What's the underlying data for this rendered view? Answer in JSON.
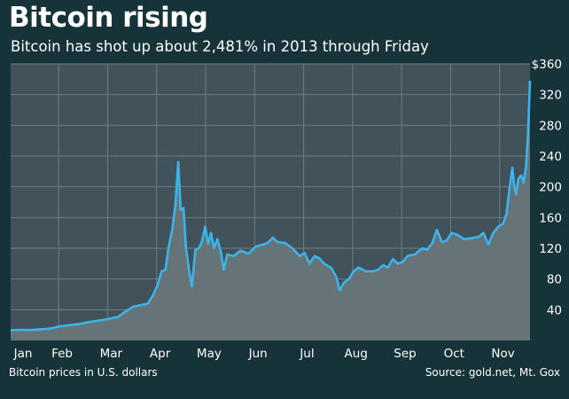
{
  "header": {
    "title": "Bitcoin rising",
    "subtitle": "Bitcoin has shot up about 2,481% in 2013 through Friday"
  },
  "footer": {
    "note": "Bitcoin prices in U.S. dollars",
    "source": "Source: gold.net, Mt. Gox"
  },
  "colors": {
    "background": "#16333a",
    "plot": "#41525a",
    "area": "#667478",
    "line": "#3cb4ea",
    "grid": "#6e7d83"
  },
  "chart_data": {
    "type": "area",
    "title": "Bitcoin rising",
    "subtitle": "Bitcoin has shot up about 2,481% in 2013 through Friday",
    "ylabel": "",
    "xlabel": "",
    "ylim": [
      0,
      360
    ],
    "y_ticks": [
      40,
      80,
      120,
      160,
      200,
      240,
      280,
      320,
      360
    ],
    "y_tick_labels": [
      "40",
      "80",
      "120",
      "160",
      "200",
      "240",
      "280",
      "320",
      "$360"
    ],
    "x_range_months": [
      0,
      10.6
    ],
    "x_tick_labels": [
      "Jan",
      "Feb",
      "Mar",
      "Apr",
      "May",
      "Jun",
      "Jul",
      "Aug",
      "Sep",
      "Oct",
      "Nov"
    ],
    "grid": true,
    "series": [
      {
        "values": [
          [
            0.0,
            13.5
          ],
          [
            0.2,
            13.8
          ],
          [
            0.4,
            13.6
          ],
          [
            0.6,
            14.5
          ],
          [
            0.8,
            15.5
          ],
          [
            1.0,
            18.5
          ],
          [
            1.2,
            20
          ],
          [
            1.4,
            21.5
          ],
          [
            1.6,
            24
          ],
          [
            1.8,
            26
          ],
          [
            2.0,
            28
          ],
          [
            2.2,
            31
          ],
          [
            2.35,
            38
          ],
          [
            2.5,
            44
          ],
          [
            2.65,
            46
          ],
          [
            2.8,
            48
          ],
          [
            2.9,
            58
          ],
          [
            3.0,
            72
          ],
          [
            3.08,
            90
          ],
          [
            3.16,
            92
          ],
          [
            3.22,
            120
          ],
          [
            3.3,
            145
          ],
          [
            3.36,
            175
          ],
          [
            3.42,
            232
          ],
          [
            3.47,
            170
          ],
          [
            3.53,
            172
          ],
          [
            3.58,
            120
          ],
          [
            3.64,
            92
          ],
          [
            3.7,
            70
          ],
          [
            3.77,
            118
          ],
          [
            3.84,
            120
          ],
          [
            3.9,
            128
          ],
          [
            3.97,
            148
          ],
          [
            4.03,
            126
          ],
          [
            4.09,
            140
          ],
          [
            4.15,
            120
          ],
          [
            4.22,
            132
          ],
          [
            4.29,
            115
          ],
          [
            4.35,
            92
          ],
          [
            4.42,
            112
          ],
          [
            4.55,
            110
          ],
          [
            4.7,
            117
          ],
          [
            4.85,
            113
          ],
          [
            5.0,
            122
          ],
          [
            5.15,
            125
          ],
          [
            5.25,
            127
          ],
          [
            5.35,
            134
          ],
          [
            5.45,
            128
          ],
          [
            5.6,
            127
          ],
          [
            5.75,
            120
          ],
          [
            5.9,
            110
          ],
          [
            6.0,
            114
          ],
          [
            6.1,
            100
          ],
          [
            6.2,
            110
          ],
          [
            6.3,
            107
          ],
          [
            6.4,
            100
          ],
          [
            6.55,
            94
          ],
          [
            6.65,
            82
          ],
          [
            6.72,
            65
          ],
          [
            6.8,
            75
          ],
          [
            6.9,
            80
          ],
          [
            7.0,
            90
          ],
          [
            7.1,
            95
          ],
          [
            7.25,
            90
          ],
          [
            7.4,
            90
          ],
          [
            7.5,
            92
          ],
          [
            7.6,
            98
          ],
          [
            7.7,
            95
          ],
          [
            7.8,
            106
          ],
          [
            7.9,
            100
          ],
          [
            8.0,
            102
          ],
          [
            8.1,
            110
          ],
          [
            8.25,
            112
          ],
          [
            8.4,
            120
          ],
          [
            8.5,
            118
          ],
          [
            8.6,
            126
          ],
          [
            8.7,
            144
          ],
          [
            8.8,
            128
          ],
          [
            8.9,
            130
          ],
          [
            9.0,
            140
          ],
          [
            9.1,
            138
          ],
          [
            9.25,
            132
          ],
          [
            9.4,
            133
          ],
          [
            9.55,
            135
          ],
          [
            9.65,
            140
          ],
          [
            9.75,
            125
          ],
          [
            9.85,
            140
          ],
          [
            9.95,
            148
          ],
          [
            10.05,
            152
          ],
          [
            10.12,
            165
          ],
          [
            10.18,
            198
          ],
          [
            10.24,
            225
          ],
          [
            10.28,
            200
          ],
          [
            10.32,
            190
          ],
          [
            10.36,
            210
          ],
          [
            10.42,
            215
          ],
          [
            10.47,
            205
          ],
          [
            10.52,
            228
          ],
          [
            10.56,
            270
          ],
          [
            10.6,
            338
          ]
        ]
      }
    ]
  }
}
